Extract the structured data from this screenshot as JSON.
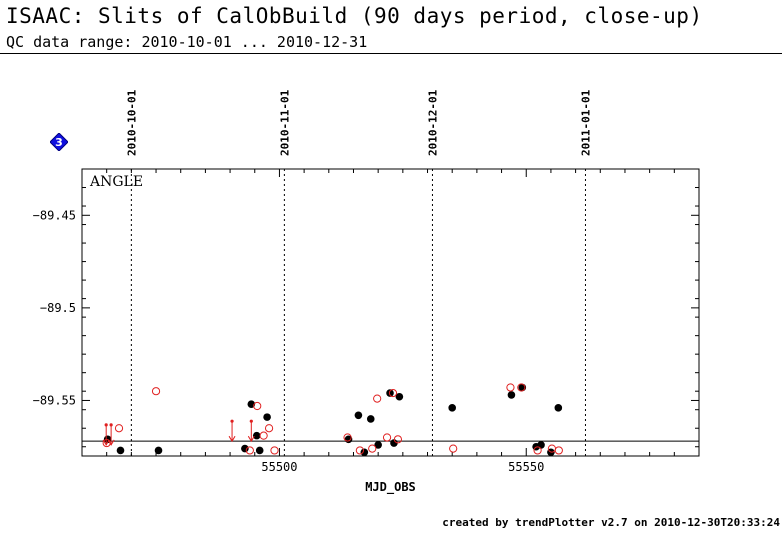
{
  "header": {
    "title": "ISAAC: Slits of CalObBuild (90 days period, close-up)",
    "subtitle": "QC data range: 2010-10-01 ... 2010-12-31"
  },
  "badge": {
    "label": "3",
    "color": "#1010e0",
    "icon": "diamond-icon"
  },
  "footer": "created by trendPlotter v2.7 on 2010-12-30T20:33:24",
  "chart_data": {
    "type": "scatter",
    "title": "ANGLE",
    "xlabel": "MJD_OBS",
    "ylabel": "",
    "xlim": [
      55460,
      55585
    ],
    "ylim": [
      -89.58,
      -89.425
    ],
    "xticks": [
      55500,
      55550
    ],
    "xtick_labels": [
      "55500",
      "55550"
    ],
    "yticks": [
      -89.45,
      -89.5,
      -89.55
    ],
    "ytick_labels": [
      "−89.45",
      "−89.5",
      "−89.55"
    ],
    "reference_line": -89.572,
    "date_markers": [
      {
        "label": "2010-10-01",
        "x": 55470
      },
      {
        "label": "2010-11-01",
        "x": 55501
      },
      {
        "label": "2010-12-01",
        "x": 55531
      },
      {
        "label": "2011-01-01",
        "x": 55562
      }
    ],
    "series": [
      {
        "marker": "filled-circle",
        "color": "#000000",
        "points": [
          [
            55465.2,
            -89.571
          ],
          [
            55467.8,
            -89.577
          ],
          [
            55475.5,
            -89.577
          ],
          [
            55493.0,
            -89.576
          ],
          [
            55494.3,
            -89.552
          ],
          [
            55495.4,
            -89.569
          ],
          [
            55496.0,
            -89.577
          ],
          [
            55497.5,
            -89.559
          ],
          [
            55514.0,
            -89.571
          ],
          [
            55516.0,
            -89.558
          ],
          [
            55517.2,
            -89.578
          ],
          [
            55518.5,
            -89.56
          ],
          [
            55520.0,
            -89.574
          ],
          [
            55522.4,
            -89.546
          ],
          [
            55523.2,
            -89.573
          ],
          [
            55524.3,
            -89.548
          ],
          [
            55535.0,
            -89.554
          ],
          [
            55547.0,
            -89.547
          ],
          [
            55549.2,
            -89.543
          ],
          [
            55552.0,
            -89.575
          ],
          [
            55553.0,
            -89.574
          ],
          [
            55555.0,
            -89.578
          ],
          [
            55556.5,
            -89.554
          ]
        ]
      },
      {
        "marker": "open-circle",
        "color": "#e02020",
        "points": [
          [
            55465.0,
            -89.573
          ],
          [
            55467.5,
            -89.565
          ],
          [
            55475.0,
            -89.545
          ],
          [
            55494.0,
            -89.577
          ],
          [
            55495.5,
            -89.553
          ],
          [
            55496.8,
            -89.569
          ],
          [
            55497.9,
            -89.565
          ],
          [
            55499.0,
            -89.577
          ],
          [
            55513.8,
            -89.57
          ],
          [
            55516.3,
            -89.577
          ],
          [
            55518.8,
            -89.576
          ],
          [
            55519.8,
            -89.549
          ],
          [
            55521.8,
            -89.57
          ],
          [
            55523.0,
            -89.546
          ],
          [
            55524.0,
            -89.571
          ],
          [
            55535.2,
            -89.576
          ],
          [
            55546.8,
            -89.543
          ],
          [
            55549.0,
            -89.543
          ],
          [
            55552.3,
            -89.577
          ],
          [
            55555.2,
            -89.576
          ],
          [
            55556.6,
            -89.577
          ]
        ]
      },
      {
        "marker": "down-arrow",
        "color": "#e02020",
        "points": [
          [
            55464.9,
            -89.574
          ],
          [
            55465.9,
            -89.574
          ],
          [
            55490.4,
            -89.572
          ],
          [
            55494.3,
            -89.572
          ]
        ]
      }
    ]
  }
}
